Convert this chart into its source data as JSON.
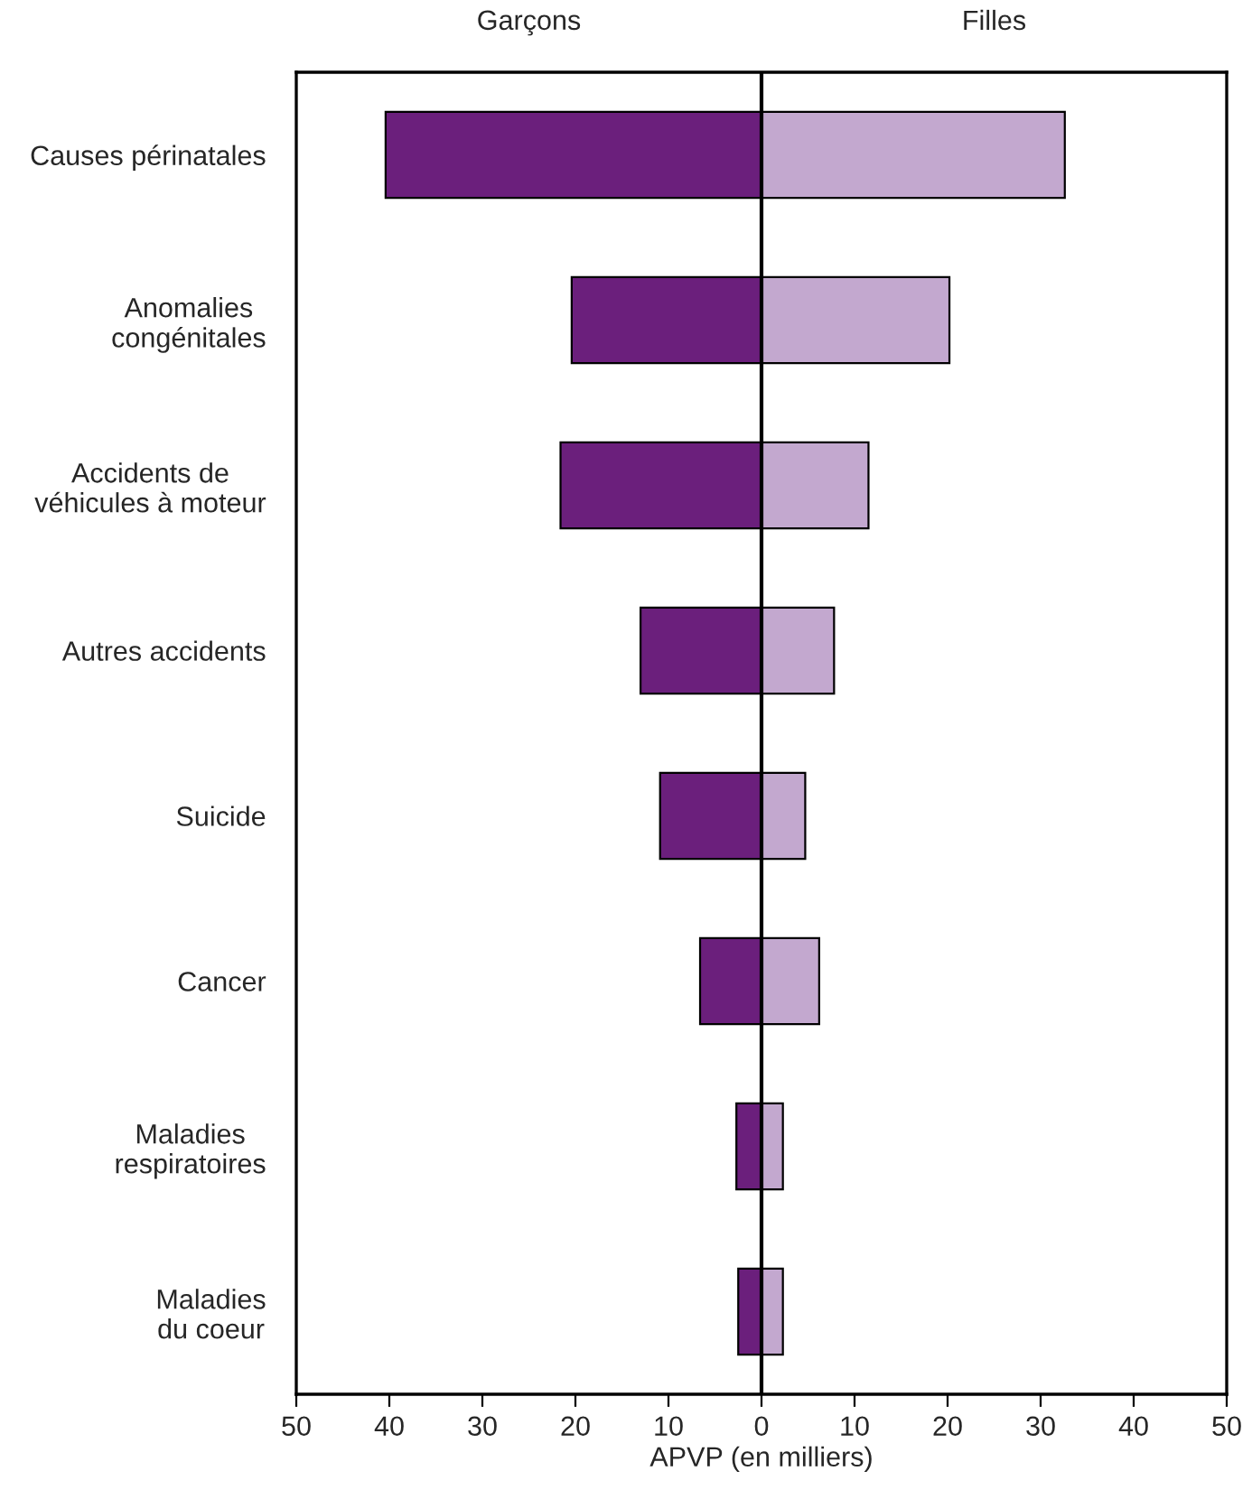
{
  "chart_data": {
    "type": "bar",
    "orientation": "horizontal",
    "stacked": true,
    "xlabel": "APVP (en milliers)",
    "categories": [
      "Causes périnatales",
      "Anomalies\ncongénitales",
      "Accidents de\nvéhicules à moteur",
      "Autres accidents",
      "Suicide",
      "Cancer",
      "Maladies\nrespiratoires",
      "Maladies\ndu coeur"
    ],
    "series": [
      {
        "name": "Garçons",
        "color": "#6b1f7c",
        "values": [
          -40.4,
          -20.4,
          -21.6,
          -13.0,
          -10.9,
          -6.6,
          -2.7,
          -2.5
        ]
      },
      {
        "name": "Filles",
        "color": "#c3a8cf",
        "values": [
          32.6,
          20.2,
          11.5,
          7.8,
          4.7,
          6.2,
          2.3,
          2.3
        ]
      }
    ],
    "xlim": [
      -50,
      50
    ],
    "xticks": [
      {
        "value": -50,
        "label": "50"
      },
      {
        "value": -40,
        "label": "40"
      },
      {
        "value": -30,
        "label": "30"
      },
      {
        "value": -20,
        "label": "20"
      },
      {
        "value": -10,
        "label": "10"
      },
      0,
      10,
      20,
      30,
      40,
      50
    ],
    "ref_lines": [
      {
        "axis": "x",
        "value": 0,
        "color": "#000000"
      }
    ],
    "grid": false
  }
}
